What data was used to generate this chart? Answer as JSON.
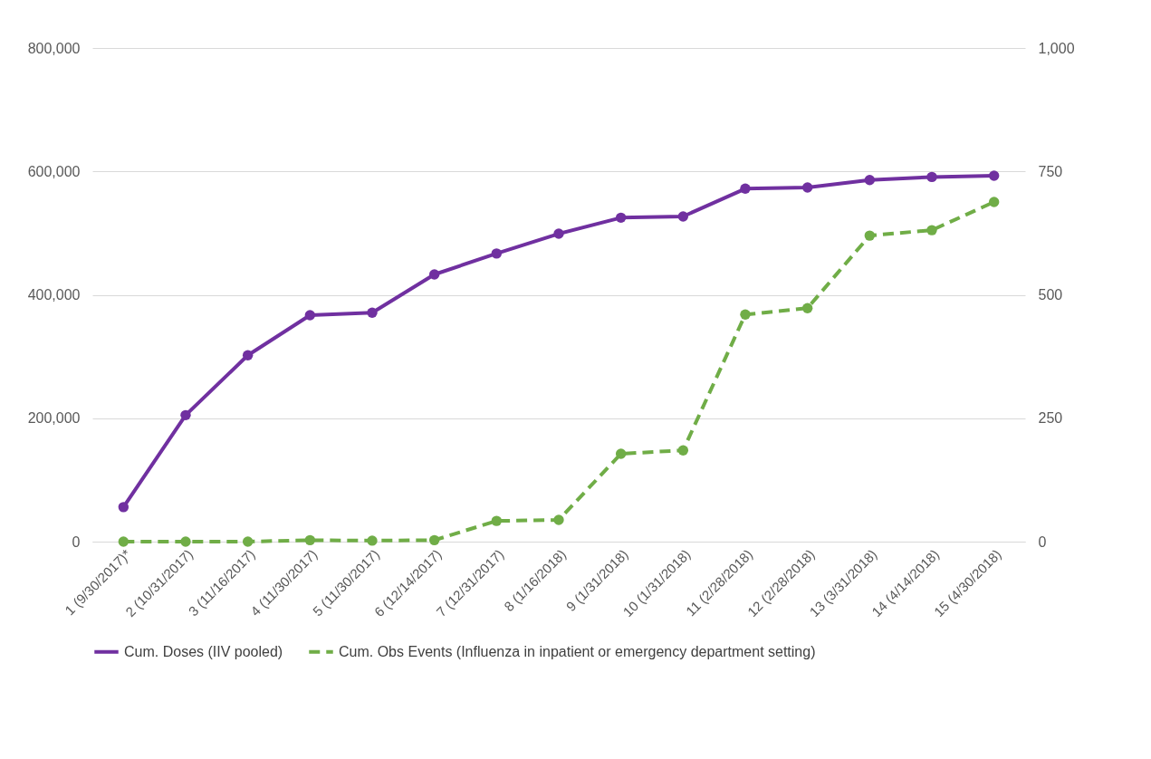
{
  "chart_data": {
    "type": "line",
    "categories": [
      "1 (9/30/2017)*",
      "2 (10/31/2017)",
      "3 (11/16/2017)",
      "4 (11/30/2017)",
      "5 (11/30/2017)",
      "6 (12/14/2017)",
      "7 (12/31/2017)",
      "8 (1/16/2018)",
      "9 (1/31/2018)",
      "10 (1/31/2018)",
      "11 (2/28/2018)",
      "12 (2/28/2018)",
      "13 (3/31/2018)",
      "14 (4/14/2018)",
      "15 (4/30/2018)"
    ],
    "series": [
      {
        "name": "Cum. Doses (IIV pooled)",
        "color": "#7030a0",
        "line_style": "solid",
        "values": [
          56000,
          205000,
          302000,
          367000,
          371000,
          433000,
          467000,
          499000,
          525000,
          527000,
          572000,
          574000,
          586000,
          591000,
          593000
        ]
      },
      {
        "name": "Cum. Obs Events (Influenza in inpatient or emergency department setting)",
        "color": "#70ad47",
        "line_style": "dashed",
        "axis": "y2",
        "values": [
          0,
          0,
          0,
          3,
          2,
          3,
          42,
          44,
          178,
          185,
          460,
          473,
          620,
          631,
          688
        ]
      }
    ],
    "ylim": [
      0,
      800000
    ],
    "yticks": [
      0,
      {
        "value": 200000,
        "label": "200,000"
      },
      {
        "value": 400000,
        "label": "400,000"
      },
      {
        "value": 600000,
        "label": "600,000"
      },
      {
        "value": 800000,
        "label": "800,000"
      }
    ],
    "y2lim": [
      0,
      1000
    ],
    "y2ticks": [
      0,
      250,
      500,
      750,
      {
        "value": 1000,
        "label": "1,000"
      }
    ],
    "grid": "y",
    "legend": "bottom",
    "marker": "circle"
  }
}
